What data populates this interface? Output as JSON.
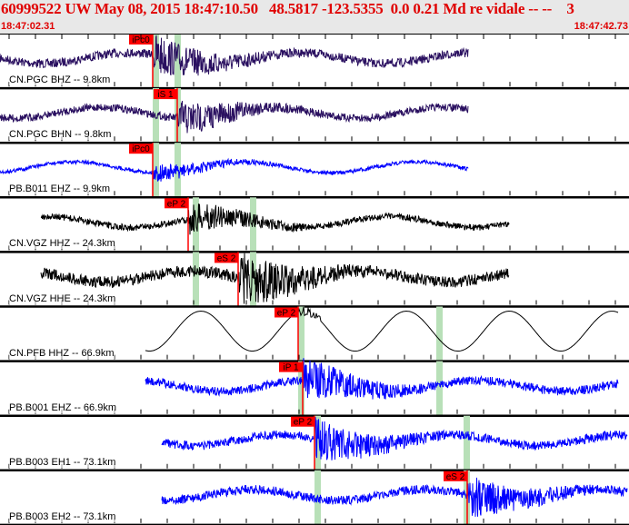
{
  "header": {
    "title": "60999522 UW May 08, 2015 18:47:10.50   48.5817 -123.5355  0.0 0.21 Md re vidale -- --    3",
    "start_time": "18:47:02.31",
    "end_time": "18:47:42.73"
  },
  "colors": {
    "header_bg": "#e8e8e8",
    "header_text": "#e00000",
    "pick": "#ff0000",
    "window": "#b8e0b8"
  },
  "traces": [
    {
      "label": "CN.PGC BHZ -- 9.8km",
      "color": "#2a1060",
      "pick": "iPc0"
    },
    {
      "label": "CN.PGC BHN -- 9.8km",
      "color": "#2a1060",
      "pick": "iS 1"
    },
    {
      "label": "PB.B011 EHZ -- 9.9km",
      "color": "#0000ff",
      "pick": "iPc0"
    },
    {
      "label": "CN.VGZ HHZ -- 24.3km",
      "color": "#000000",
      "pick": "eP 2"
    },
    {
      "label": "CN.VGZ HHE -- 24.3km",
      "color": "#000000",
      "pick": "eS 2"
    },
    {
      "label": "CN.PFB HHZ -- 66.9km",
      "color": "#000000",
      "pick": "eP 2"
    },
    {
      "label": "PB.B001 EHZ -- 66.9km",
      "color": "#0000ff",
      "pick": "iP 1"
    },
    {
      "label": "PB.B003 EH1 -- 73.1km",
      "color": "#0000ff",
      "pick": "eP 2"
    },
    {
      "label": "PB.B003 EH2 -- 73.1km",
      "color": "#0000ff",
      "pick": "eS 2"
    }
  ]
}
